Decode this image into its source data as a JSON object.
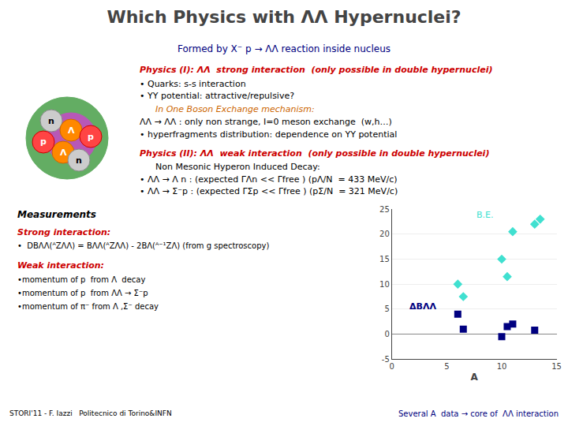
{
  "chart_data": {
    "type": "scatter",
    "title": "Which Physics with ΛΛ Hypernuclei?",
    "subtitle": "Formed by X⁻ p → ΛΛ reaction inside nucleus",
    "xlabel": "A",
    "xlim": [
      0,
      15
    ],
    "xticks": [
      0,
      5,
      10,
      15
    ],
    "ylim": [
      -5,
      25
    ],
    "yticks": [
      -5,
      0,
      5,
      10,
      15,
      20,
      25
    ],
    "grid": true,
    "series": [
      {
        "name": "B.E.",
        "color": "#40e0d0",
        "marker": "diamond",
        "x": [
          6.0,
          6.5,
          10.0,
          10.5,
          11.0,
          13.0,
          13.5
        ],
        "values": [
          10.0,
          7.5,
          15.0,
          11.5,
          20.5,
          22.0,
          23.0
        ]
      },
      {
        "name": "ΔBΛΛ",
        "color": "#000080",
        "marker": "square",
        "x": [
          6.0,
          6.5,
          10.0,
          10.5,
          11.0,
          13.0
        ],
        "values": [
          4.0,
          1.0,
          -0.5,
          1.5,
          2.0,
          0.8
        ]
      }
    ],
    "annotations": [
      "n",
      "Λ",
      "p",
      "Λ",
      "p",
      "n",
      "Physics (I): ΛΛ  strong interaction  (only possible in double hypernuclei)",
      "• Quarks: s-s interaction",
      "• YY potential: attractive/repulsive?",
      "In One Boson Exchange mechanism:",
      "ΛΛ → ΛΛ : only non strange, I=0 meson exchange  (w,h…)",
      "• hyperfragments distribution: dependence on YY potential",
      "Physics (II): ΛΛ  weak interaction  (only possible in double hypernuclei)",
      "Non Mesonic Hyperon Induced Decay:",
      "• ΛΛ → Λ n : (expected ΓΛn << Γfree ) (pΛ/N  = 433 MeV/c)",
      "• ΛΛ → Σ⁻p : (expected ΓΣp << Γfree ) (pΣ/N  = 321 MeV/c)",
      "Measurements",
      "Strong interaction:",
      "•  DBΛΛ(ᴬZΛΛ) = BΛΛ(ᴬZΛΛ) - 2BΛ(ᴬ⁻¹ZΛ) (from g spectroscopy)",
      "Weak interaction:",
      "•momentum of p  from Λ  decay",
      "•momentum of p  from ΛΛ → Σ⁻p",
      "•momentum of π⁻ from Λ ,Σ⁻ decay",
      "STORI'11 - F. Iazzi   Politecnico di Torino&INFN",
      "Several A  data → core of  ΛΛ interaction"
    ]
  }
}
